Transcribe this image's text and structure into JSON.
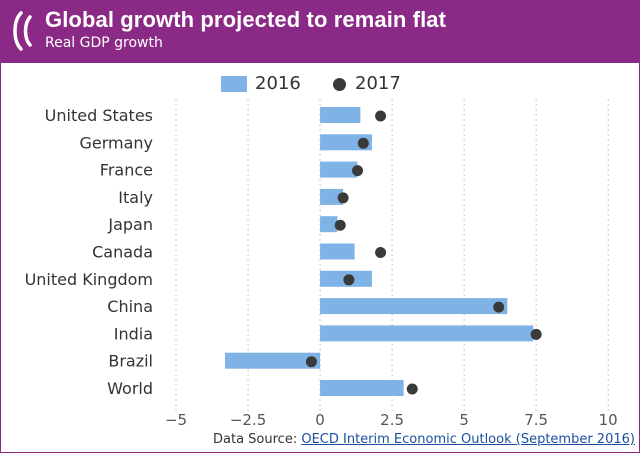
{
  "header": {
    "title": "Global growth projected to remain flat",
    "subtitle": "Real GDP growth"
  },
  "colors": {
    "header_bg": "#8a2a86",
    "bar": "#7fb3e6",
    "dot": "#3a3a3a",
    "axis_text": "#555555"
  },
  "source": {
    "prefix": "Data Source: ",
    "link_text": "OECD Interim Economic Outlook (September 2016)"
  },
  "chart_data": {
    "type": "bar",
    "orientation": "horizontal",
    "title": "Global growth projected to remain flat",
    "subtitle": "Real GDP growth",
    "categories": [
      "United States",
      "Germany",
      "France",
      "Italy",
      "Japan",
      "Canada",
      "United Kingdom",
      "China",
      "India",
      "Brazil",
      "World"
    ],
    "series": [
      {
        "name": "2016",
        "mark": "bar",
        "values": [
          1.4,
          1.8,
          1.3,
          0.8,
          0.6,
          1.2,
          1.8,
          6.5,
          7.4,
          -3.3,
          2.9
        ]
      },
      {
        "name": "2017",
        "mark": "dot",
        "values": [
          2.1,
          1.5,
          1.3,
          0.8,
          0.7,
          2.1,
          1.0,
          6.2,
          7.5,
          -0.3,
          3.2
        ]
      }
    ],
    "xlim": [
      -5,
      11
    ],
    "xticks": [
      -5,
      -2.5,
      0,
      2.5,
      5,
      7.5,
      10
    ],
    "xtick_labels": [
      "−5",
      "−2.5",
      "0",
      "2.5",
      "5",
      "7.5",
      "10"
    ],
    "grid": "vertical dotted",
    "legend": "top-center"
  }
}
